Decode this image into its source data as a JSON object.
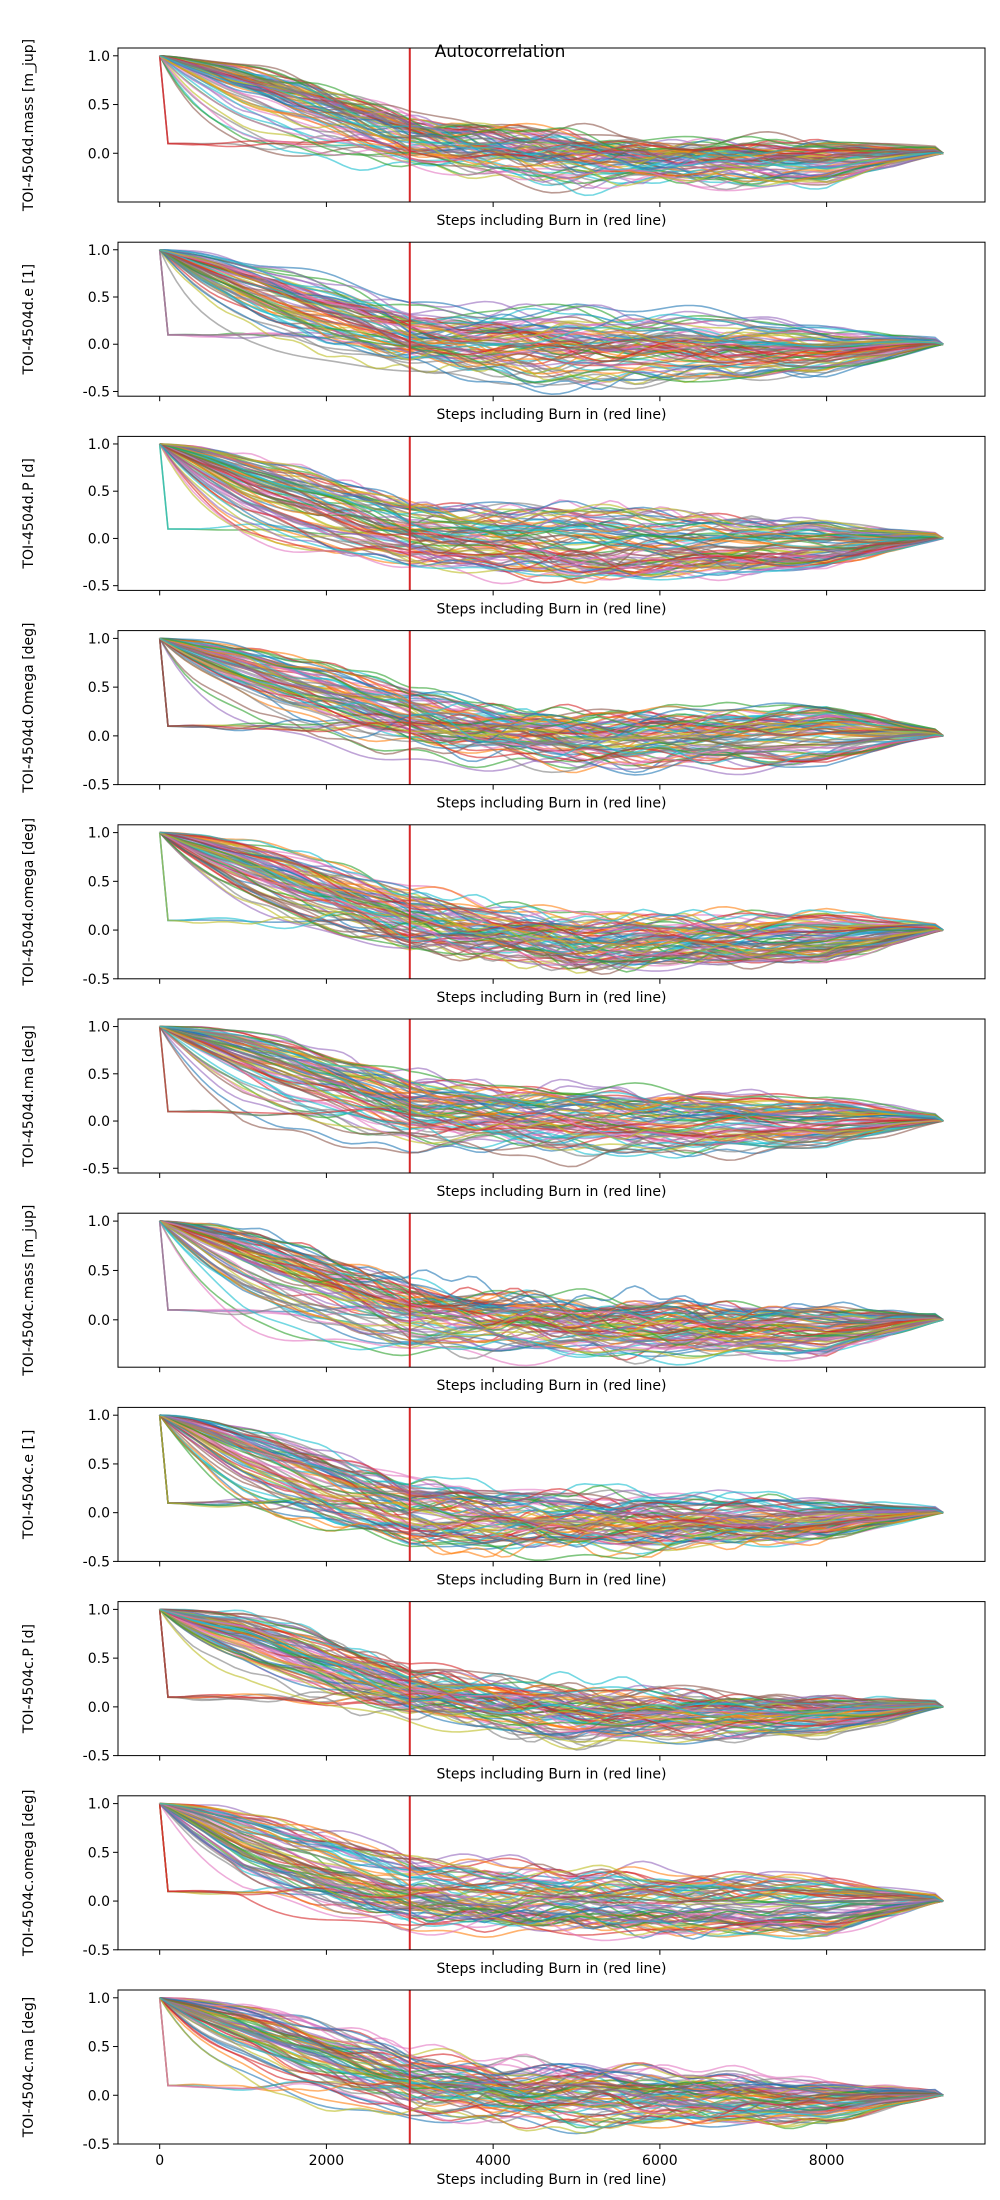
{
  "title": "Autocorrelation",
  "chart_data": {
    "type": "line",
    "title": "Autocorrelation",
    "xlabel": "Steps including Burn in (red line)",
    "x_ticks": [
      0,
      2000,
      4000,
      6000,
      8000
    ],
    "xlim": [
      -500,
      9900
    ],
    "burn_in_step": 3000,
    "burn_in_color": "#d62728",
    "series_count_per_panel": 80,
    "palette": [
      "#1f77b4",
      "#ff7f0e",
      "#2ca02c",
      "#d62728",
      "#9467bd",
      "#8c564b",
      "#e377c2",
      "#7f7f7f",
      "#bcbd22",
      "#17becf"
    ],
    "panels": [
      {
        "ylabel": "TOI-4504d.mass [m_jup]",
        "ylim": [
          -0.5,
          1.08
        ],
        "y_ticks": [
          "0.0",
          "0.5",
          "1.0"
        ],
        "y_tick_values": [
          0,
          0.5,
          1.0
        ],
        "envelope": {
          "steps": [
            0,
            1000,
            3000,
            5000,
            8000,
            9400
          ],
          "upper": [
            1.0,
            0.7,
            0.0,
            0.02,
            0.1,
            0.02
          ],
          "lower": [
            0.0,
            -0.1,
            -0.1,
            -0.3,
            -0.3,
            0.0
          ]
        }
      },
      {
        "ylabel": "TOI-4504d.e [1]",
        "ylim": [
          -0.55,
          1.08
        ],
        "y_ticks": [
          "-0.5",
          "0.0",
          "0.5",
          "1.0"
        ],
        "y_tick_values": [
          -0.5,
          0,
          0.5,
          1.0
        ],
        "envelope": {
          "steps": [
            0,
            1000,
            3000,
            5000,
            8000,
            9400
          ],
          "upper": [
            1.0,
            0.6,
            0.1,
            0.3,
            0.15,
            0.02
          ],
          "lower": [
            0.0,
            -0.1,
            -0.3,
            -0.45,
            -0.3,
            0.0
          ]
        }
      },
      {
        "ylabel": "TOI-4504d.P [d]",
        "ylim": [
          -0.55,
          1.08
        ],
        "y_ticks": [
          "-0.5",
          "0.0",
          "0.5",
          "1.0"
        ],
        "y_tick_values": [
          -0.5,
          0,
          0.5,
          1.0
        ],
        "envelope": {
          "steps": [
            0,
            1000,
            3000,
            5000,
            8000,
            9400
          ],
          "upper": [
            1.0,
            0.7,
            0.1,
            0.3,
            0.15,
            0.02
          ],
          "lower": [
            0.0,
            -0.2,
            -0.3,
            -0.45,
            -0.3,
            0.0
          ]
        }
      },
      {
        "ylabel": "TOI-4504d.Omega [deg]",
        "ylim": [
          -0.5,
          1.08
        ],
        "y_ticks": [
          "-0.5",
          "0.0",
          "0.5",
          "1.0"
        ],
        "y_tick_values": [
          -0.5,
          0,
          0.5,
          1.0
        ],
        "envelope": {
          "steps": [
            0,
            1000,
            3000,
            5000,
            8000,
            9400
          ],
          "upper": [
            1.0,
            0.75,
            0.2,
            0.1,
            0.3,
            0.02
          ],
          "lower": [
            -0.3,
            -0.2,
            -0.25,
            -0.4,
            -0.3,
            0.0
          ]
        }
      },
      {
        "ylabel": "TOI-4504d.omega [deg]",
        "ylim": [
          -0.5,
          1.08
        ],
        "y_ticks": [
          "-0.5",
          "0.0",
          "0.5",
          "1.0"
        ],
        "y_tick_values": [
          -0.5,
          0,
          0.5,
          1.0
        ],
        "envelope": {
          "steps": [
            0,
            1000,
            3000,
            5000,
            8000,
            9400
          ],
          "upper": [
            1.0,
            0.75,
            0.1,
            0.0,
            0.15,
            0.02
          ],
          "lower": [
            0.0,
            -0.1,
            -0.3,
            -0.4,
            -0.35,
            0.0
          ]
        }
      },
      {
        "ylabel": "TOI-4504d.ma [deg]",
        "ylim": [
          -0.55,
          1.08
        ],
        "y_ticks": [
          "-0.5",
          "0.0",
          "0.5",
          "1.0"
        ],
        "y_tick_values": [
          -0.5,
          0,
          0.5,
          1.0
        ],
        "envelope": {
          "steps": [
            0,
            1000,
            3000,
            5000,
            8000,
            9400
          ],
          "upper": [
            1.0,
            0.8,
            0.15,
            0.2,
            0.2,
            0.02
          ],
          "lower": [
            0.05,
            -0.25,
            -0.3,
            -0.4,
            -0.3,
            0.0
          ]
        }
      },
      {
        "ylabel": "TOI-4504c.mass [m_jup]",
        "ylim": [
          -0.48,
          1.08
        ],
        "y_ticks": [
          "0.0",
          "0.5",
          "1.0"
        ],
        "y_tick_values": [
          0,
          0.5,
          1.0
        ],
        "envelope": {
          "steps": [
            0,
            1000,
            3000,
            5000,
            8000,
            9400
          ],
          "upper": [
            1.0,
            0.75,
            0.1,
            0.1,
            0.1,
            0.02
          ],
          "lower": [
            0.0,
            -0.25,
            -0.35,
            -0.35,
            -0.35,
            0.0
          ]
        }
      },
      {
        "ylabel": "TOI-4504c.e [1]",
        "ylim": [
          -0.5,
          1.08
        ],
        "y_ticks": [
          "-0.5",
          "0.0",
          "0.5",
          "1.0"
        ],
        "y_tick_values": [
          -0.5,
          0,
          0.5,
          1.0
        ],
        "envelope": {
          "steps": [
            0,
            1000,
            3000,
            5000,
            8000,
            9400
          ],
          "upper": [
            1.0,
            0.6,
            0.0,
            0.1,
            0.1,
            0.02
          ],
          "lower": [
            0.0,
            -0.25,
            -0.4,
            -0.45,
            -0.3,
            0.0
          ]
        }
      },
      {
        "ylabel": "TOI-4504c.P [d]",
        "ylim": [
          -0.5,
          1.08
        ],
        "y_ticks": [
          "-0.5",
          "0.0",
          "0.5",
          "1.0"
        ],
        "y_tick_values": [
          -0.5,
          0,
          0.5,
          1.0
        ],
        "envelope": {
          "steps": [
            0,
            1000,
            3000,
            5000,
            8000,
            9400
          ],
          "upper": [
            1.0,
            0.8,
            0.1,
            0.05,
            0.05,
            0.02
          ],
          "lower": [
            -0.3,
            -0.1,
            -0.2,
            -0.4,
            -0.3,
            0.0
          ]
        }
      },
      {
        "ylabel": "TOI-4504c.omega [deg]",
        "ylim": [
          -0.5,
          1.08
        ],
        "y_ticks": [
          "-0.5",
          "0.0",
          "0.5",
          "1.0"
        ],
        "y_tick_values": [
          -0.5,
          0,
          0.5,
          1.0
        ],
        "envelope": {
          "steps": [
            0,
            1000,
            3000,
            5000,
            8000,
            9400
          ],
          "upper": [
            1.0,
            0.7,
            0.15,
            0.2,
            0.2,
            0.02
          ],
          "lower": [
            0.0,
            -0.3,
            -0.35,
            -0.35,
            -0.35,
            0.0
          ]
        }
      },
      {
        "ylabel": "TOI-4504c.ma [deg]",
        "ylim": [
          -0.5,
          1.08
        ],
        "y_ticks": [
          "-0.5",
          "0.0",
          "0.5",
          "1.0"
        ],
        "y_tick_values": [
          -0.5,
          0,
          0.5,
          1.0
        ],
        "envelope": {
          "steps": [
            0,
            1000,
            3000,
            5000,
            8000,
            9400
          ],
          "upper": [
            1.0,
            0.8,
            0.15,
            0.2,
            0.1,
            0.02
          ],
          "lower": [
            -0.25,
            -0.2,
            -0.3,
            -0.35,
            -0.3,
            0.0
          ]
        }
      }
    ]
  }
}
